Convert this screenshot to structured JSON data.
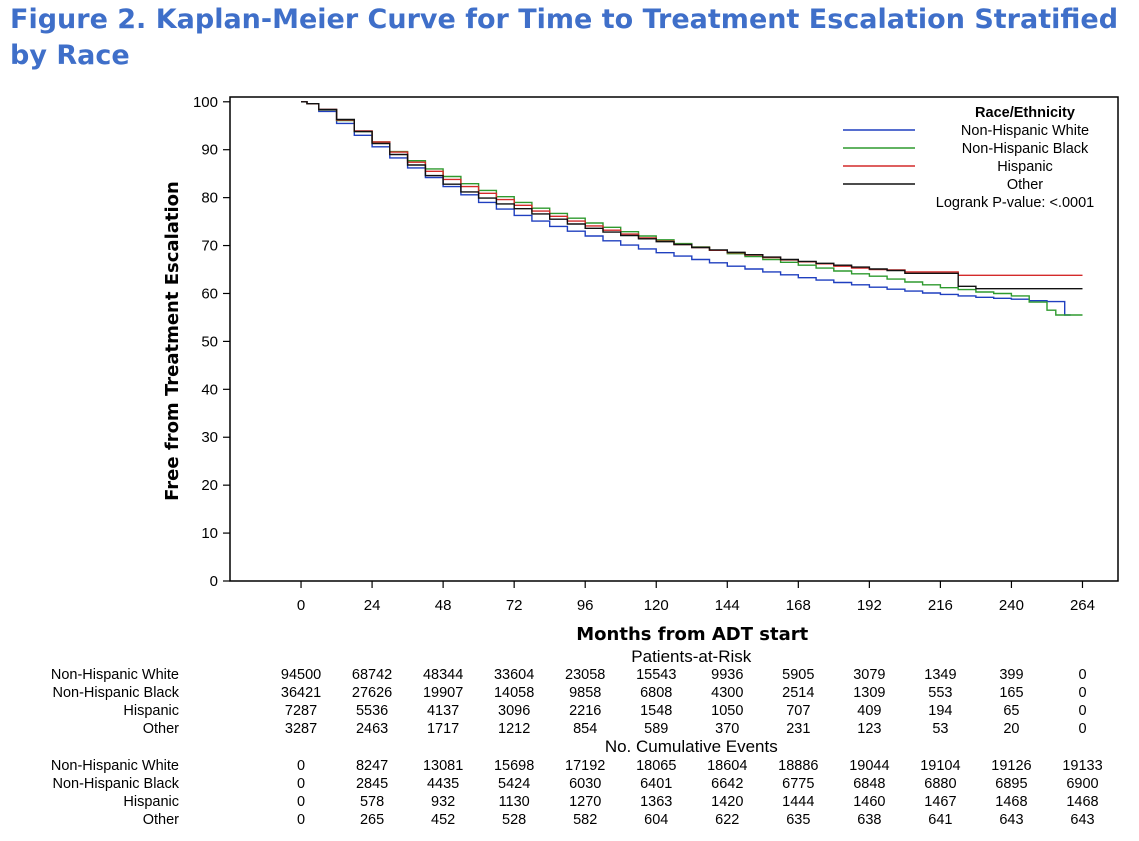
{
  "figure": {
    "title": "Figure 2. Kaplan-Meier Curve for Time to Treatment Escalation Stratified by Race"
  },
  "chart_data": {
    "type": "line",
    "step": true,
    "xlabel": "Months from ADT start",
    "ylabel": "Free from Treatment Escalation",
    "xlim": [
      -24,
      276
    ],
    "ylim": [
      0,
      101
    ],
    "x_ticks": [
      0,
      24,
      48,
      72,
      96,
      120,
      144,
      168,
      192,
      216,
      240,
      264
    ],
    "y_ticks": [
      0,
      10,
      20,
      30,
      40,
      50,
      60,
      70,
      80,
      90,
      100
    ],
    "grid": false,
    "legend": {
      "title": "Race/Ethnicity",
      "placement": "top-right",
      "note": "Logrank P-value: <.0001"
    },
    "series": [
      {
        "name": "Non-Hispanic White",
        "color": "#1f3fbf",
        "points": [
          [
            0,
            100
          ],
          [
            2,
            99.6
          ],
          [
            6,
            98
          ],
          [
            12,
            95.5
          ],
          [
            18,
            93
          ],
          [
            24,
            90.6
          ],
          [
            30,
            88.3
          ],
          [
            36,
            86.2
          ],
          [
            42,
            84.2
          ],
          [
            48,
            82.3
          ],
          [
            54,
            80.6
          ],
          [
            60,
            79
          ],
          [
            66,
            77.6
          ],
          [
            72,
            76.3
          ],
          [
            78,
            75.1
          ],
          [
            84,
            74
          ],
          [
            90,
            73
          ],
          [
            96,
            72
          ],
          [
            102,
            71
          ],
          [
            108,
            70.1
          ],
          [
            114,
            69.3
          ],
          [
            120,
            68.5
          ],
          [
            126,
            67.8
          ],
          [
            132,
            67.1
          ],
          [
            138,
            66.4
          ],
          [
            144,
            65.7
          ],
          [
            150,
            65.1
          ],
          [
            156,
            64.5
          ],
          [
            162,
            63.9
          ],
          [
            168,
            63.3
          ],
          [
            174,
            62.8
          ],
          [
            180,
            62.3
          ],
          [
            186,
            61.8
          ],
          [
            192,
            61.3
          ],
          [
            198,
            60.9
          ],
          [
            204,
            60.5
          ],
          [
            210,
            60.1
          ],
          [
            216,
            59.8
          ],
          [
            222,
            59.5
          ],
          [
            228,
            59.2
          ],
          [
            234,
            59
          ],
          [
            240,
            58.8
          ],
          [
            246,
            58.5
          ],
          [
            252,
            58.3
          ],
          [
            258,
            58.3
          ],
          [
            258,
            55.5
          ],
          [
            260,
            55.5
          ]
        ]
      },
      {
        "name": "Non-Hispanic Black",
        "color": "#2e9a2e",
        "points": [
          [
            0,
            100
          ],
          [
            2,
            99.6
          ],
          [
            6,
            98.3
          ],
          [
            12,
            96.1
          ],
          [
            18,
            93.8
          ],
          [
            24,
            91.6
          ],
          [
            30,
            89.6
          ],
          [
            36,
            87.7
          ],
          [
            42,
            86
          ],
          [
            48,
            84.4
          ],
          [
            54,
            82.9
          ],
          [
            60,
            81.5
          ],
          [
            66,
            80.2
          ],
          [
            72,
            79
          ],
          [
            78,
            77.8
          ],
          [
            84,
            76.7
          ],
          [
            90,
            75.7
          ],
          [
            96,
            74.7
          ],
          [
            102,
            73.8
          ],
          [
            108,
            72.9
          ],
          [
            114,
            72
          ],
          [
            120,
            71.2
          ],
          [
            126,
            70.4
          ],
          [
            132,
            69.7
          ],
          [
            138,
            69
          ],
          [
            144,
            68.3
          ],
          [
            150,
            67.7
          ],
          [
            156,
            67.1
          ],
          [
            162,
            66.5
          ],
          [
            168,
            65.9
          ],
          [
            174,
            65.3
          ],
          [
            180,
            64.7
          ],
          [
            186,
            64.1
          ],
          [
            192,
            63.6
          ],
          [
            198,
            63
          ],
          [
            204,
            62.4
          ],
          [
            210,
            61.8
          ],
          [
            216,
            61.2
          ],
          [
            222,
            60.8
          ],
          [
            228,
            60.3
          ],
          [
            234,
            60
          ],
          [
            240,
            59.5
          ],
          [
            246,
            58.2
          ],
          [
            252,
            56.5
          ],
          [
            255,
            55.5
          ],
          [
            264,
            55.5
          ]
        ]
      },
      {
        "name": "Hispanic",
        "color": "#d42a2a",
        "points": [
          [
            0,
            100
          ],
          [
            2,
            99.6
          ],
          [
            6,
            98.4
          ],
          [
            12,
            96.2
          ],
          [
            18,
            93.9
          ],
          [
            24,
            91.6
          ],
          [
            30,
            89.5
          ],
          [
            36,
            87.4
          ],
          [
            42,
            85.5
          ],
          [
            48,
            83.8
          ],
          [
            54,
            82.3
          ],
          [
            60,
            80.9
          ],
          [
            66,
            79.6
          ],
          [
            72,
            78.4
          ],
          [
            78,
            77.2
          ],
          [
            84,
            76.1
          ],
          [
            90,
            75.1
          ],
          [
            96,
            74.1
          ],
          [
            102,
            73.2
          ],
          [
            108,
            72.4
          ],
          [
            114,
            71.6
          ],
          [
            120,
            70.9
          ],
          [
            126,
            70.2
          ],
          [
            132,
            69.6
          ],
          [
            138,
            69
          ],
          [
            144,
            68.5
          ],
          [
            150,
            68
          ],
          [
            156,
            67.5
          ],
          [
            162,
            67
          ],
          [
            168,
            66.6
          ],
          [
            174,
            66.2
          ],
          [
            180,
            65.7
          ],
          [
            186,
            65.3
          ],
          [
            192,
            65
          ],
          [
            198,
            64.9
          ],
          [
            204,
            64.5
          ],
          [
            216,
            64.5
          ],
          [
            222,
            63.8
          ],
          [
            264,
            63.8
          ]
        ]
      },
      {
        "name": "Other",
        "color": "#111111",
        "points": [
          [
            0,
            100
          ],
          [
            2,
            99.6
          ],
          [
            6,
            98.4
          ],
          [
            12,
            96.3
          ],
          [
            18,
            93.8
          ],
          [
            24,
            91.3
          ],
          [
            30,
            89
          ],
          [
            36,
            86.8
          ],
          [
            42,
            84.6
          ],
          [
            48,
            82.8
          ],
          [
            54,
            81.2
          ],
          [
            60,
            79.9
          ],
          [
            66,
            78.7
          ],
          [
            72,
            77.7
          ],
          [
            78,
            76.6
          ],
          [
            84,
            75.5
          ],
          [
            90,
            74.5
          ],
          [
            96,
            73.6
          ],
          [
            102,
            72.8
          ],
          [
            108,
            72.1
          ],
          [
            114,
            71.4
          ],
          [
            120,
            70.8
          ],
          [
            126,
            70.2
          ],
          [
            132,
            69.6
          ],
          [
            138,
            69.1
          ],
          [
            144,
            68.6
          ],
          [
            150,
            68.1
          ],
          [
            156,
            67.6
          ],
          [
            162,
            67.1
          ],
          [
            168,
            66.7
          ],
          [
            174,
            66.3
          ],
          [
            180,
            65.9
          ],
          [
            186,
            65.5
          ],
          [
            192,
            65.1
          ],
          [
            198,
            64.8
          ],
          [
            204,
            64.2
          ],
          [
            216,
            64.2
          ],
          [
            222,
            61.5
          ],
          [
            228,
            61
          ],
          [
            264,
            61
          ]
        ]
      }
    ]
  },
  "risk_tables": {
    "patients_at_risk": {
      "title": "Patients-at-Risk",
      "rows": [
        {
          "label": "Non-Hispanic White",
          "values": [
            "94500",
            "68742",
            "48344",
            "33604",
            "23058",
            "15543",
            "9936",
            "5905",
            "3079",
            "1349",
            "399",
            "0"
          ]
        },
        {
          "label": "Non-Hispanic Black",
          "values": [
            "36421",
            "27626",
            "19907",
            "14058",
            "9858",
            "6808",
            "4300",
            "2514",
            "1309",
            "553",
            "165",
            "0"
          ]
        },
        {
          "label": "Hispanic",
          "values": [
            "7287",
            "5536",
            "4137",
            "3096",
            "2216",
            "1548",
            "1050",
            "707",
            "409",
            "194",
            "65",
            "0"
          ]
        },
        {
          "label": "Other",
          "values": [
            "3287",
            "2463",
            "1717",
            "1212",
            "854",
            "589",
            "370",
            "231",
            "123",
            "53",
            "20",
            "0"
          ]
        }
      ]
    },
    "cumulative_events": {
      "title": "No. Cumulative Events",
      "rows": [
        {
          "label": "Non-Hispanic White",
          "values": [
            "0",
            "8247",
            "13081",
            "15698",
            "17192",
            "18065",
            "18604",
            "18886",
            "19044",
            "19104",
            "19126",
            "19133"
          ]
        },
        {
          "label": "Non-Hispanic Black",
          "values": [
            "0",
            "2845",
            "4435",
            "5424",
            "6030",
            "6401",
            "6642",
            "6775",
            "6848",
            "6880",
            "6895",
            "6900"
          ]
        },
        {
          "label": "Hispanic",
          "values": [
            "0",
            "578",
            "932",
            "1130",
            "1270",
            "1363",
            "1420",
            "1444",
            "1460",
            "1467",
            "1468",
            "1468"
          ]
        },
        {
          "label": "Other",
          "values": [
            "0",
            "265",
            "452",
            "528",
            "582",
            "604",
            "622",
            "635",
            "638",
            "641",
            "643",
            "643"
          ]
        }
      ]
    }
  }
}
